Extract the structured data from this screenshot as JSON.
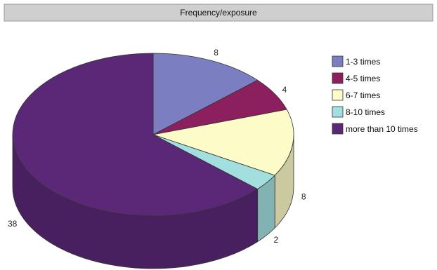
{
  "chart_data": {
    "type": "pie",
    "title": "Frequency/exposure",
    "three_d": true,
    "start_angle_deg": 90,
    "direction": "clockwise",
    "legend_position": "right",
    "categories": [
      "1-3 times",
      "4-5 times",
      "6-7 times",
      "8-10 times",
      "more than 10 times"
    ],
    "values": [
      8,
      4,
      8,
      2,
      38
    ],
    "colors": [
      "#7b7fc2",
      "#8c1f5e",
      "#fdfbc8",
      "#a4dfe0",
      "#5b2877"
    ]
  }
}
